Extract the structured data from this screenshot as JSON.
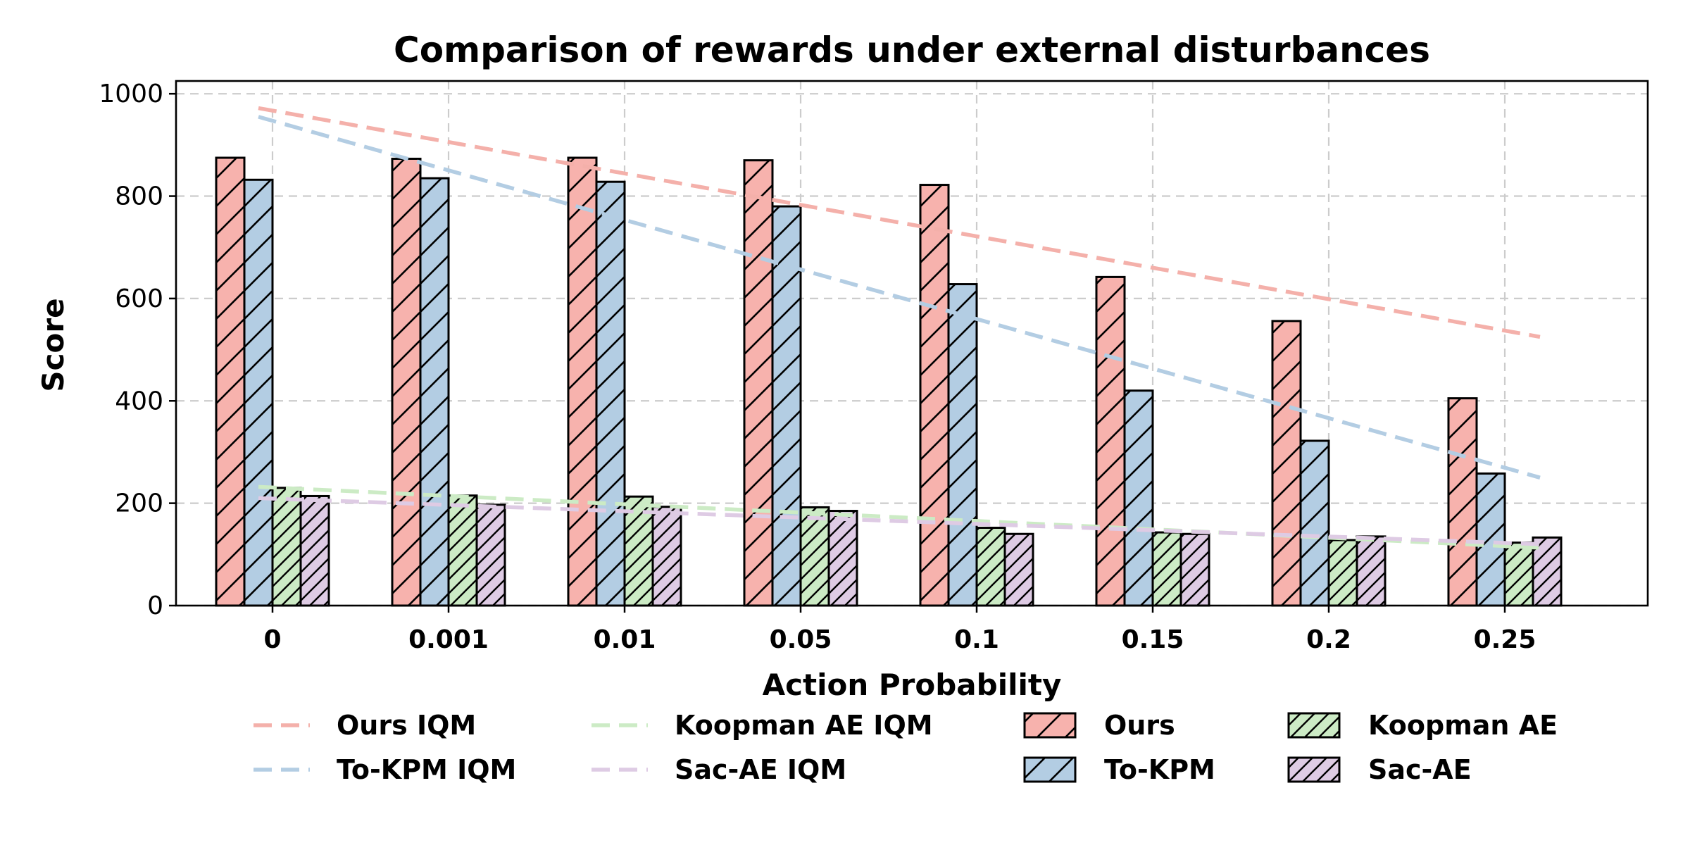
{
  "chart_data": {
    "type": "bar",
    "title": "Comparison of rewards under external disturbances",
    "xlabel": "Action Probability",
    "ylabel": "Score",
    "ylim": [
      0,
      1025
    ],
    "yticks": [
      0,
      200,
      400,
      600,
      800,
      1000
    ],
    "grid": true,
    "legend_position": "bottom",
    "categories": [
      "0",
      "0.001",
      "0.01",
      "0.05",
      "0.1",
      "0.15",
      "0.2",
      "0.25"
    ],
    "series": [
      {
        "name": "Ours",
        "color": "#f7b2ad",
        "hatch": "coarse",
        "values": [
          875,
          873,
          875,
          870,
          822,
          642,
          556,
          405
        ]
      },
      {
        "name": "To-KPM",
        "color": "#b3cde3",
        "hatch": "coarse",
        "values": [
          832,
          835,
          828,
          780,
          628,
          420,
          322,
          258
        ]
      },
      {
        "name": "Koopman AE",
        "color": "#ccebc5",
        "hatch": "fine",
        "values": [
          230,
          215,
          213,
          192,
          152,
          143,
          128,
          123
        ]
      },
      {
        "name": "Sac-AE",
        "color": "#decbe4",
        "hatch": "fine",
        "values": [
          214,
          197,
          193,
          185,
          140,
          140,
          135,
          133
        ]
      }
    ],
    "iqm_lines": [
      {
        "name": "Ours IQM",
        "color": "#f4b0aa",
        "start": 972,
        "end": 525
      },
      {
        "name": "To-KPM IQM",
        "color": "#b3cde3",
        "start": 955,
        "end": 250
      },
      {
        "name": "Koopman AE IQM",
        "color": "#ccebc5",
        "start": 232,
        "end": 113
      },
      {
        "name": "Sac-AE IQM",
        "color": "#decbe4",
        "start": 210,
        "end": 120
      }
    ],
    "legend": [
      "Ours IQM",
      "Koopman AE IQM",
      "Ours",
      "Koopman AE",
      "To-KPM IQM",
      "Sac-AE IQM",
      "To-KPM",
      "Sac-AE"
    ]
  }
}
